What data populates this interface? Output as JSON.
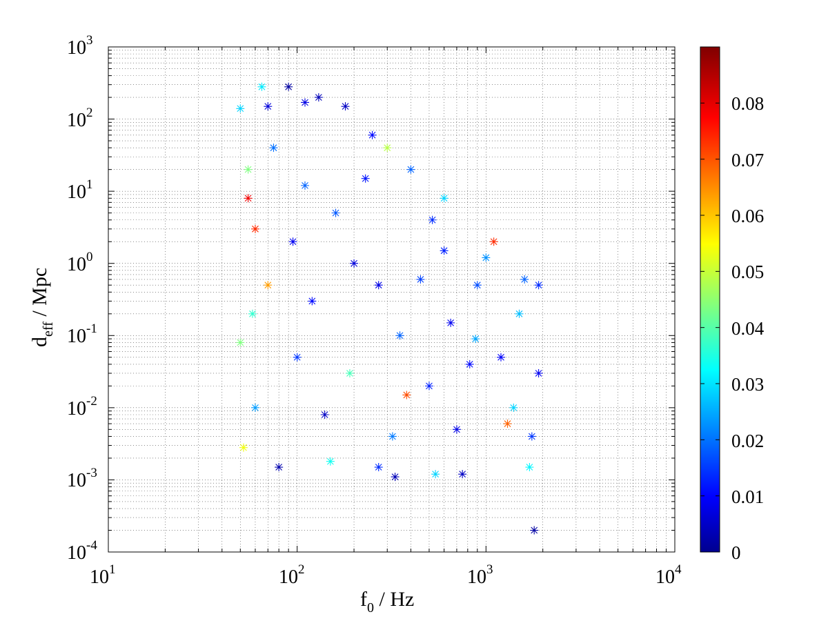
{
  "chart_data": {
    "type": "scatter",
    "marker": "asterisk",
    "colormap": "jet",
    "x_scale": "log",
    "y_scale": "log",
    "grid": true,
    "xlim": [
      10,
      10000
    ],
    "ylim": [
      0.0001,
      1000
    ],
    "xlabel": {
      "main": "f",
      "sub": "0",
      "rest": " / Hz"
    },
    "ylabel": {
      "main": "d",
      "sub": "eff",
      "rest": " / Mpc"
    },
    "x_ticks": [
      {
        "base": "10",
        "exp": "1"
      },
      {
        "base": "10",
        "exp": "2"
      },
      {
        "base": "10",
        "exp": "3"
      },
      {
        "base": "10",
        "exp": "4"
      }
    ],
    "y_ticks": [
      {
        "base": "10",
        "exp": "-4"
      },
      {
        "base": "10",
        "exp": "-3"
      },
      {
        "base": "10",
        "exp": "-2"
      },
      {
        "base": "10",
        "exp": "-1"
      },
      {
        "base": "10",
        "exp": "0"
      },
      {
        "base": "10",
        "exp": "1"
      },
      {
        "base": "10",
        "exp": "2"
      },
      {
        "base": "10",
        "exp": "3"
      }
    ],
    "colorbar": {
      "range": [
        0,
        0.09
      ],
      "ticks": [
        0,
        0.01,
        0.02,
        0.03,
        0.04,
        0.05,
        0.06,
        0.07,
        0.08
      ],
      "tick_labels": [
        "0",
        "0.01",
        "0.02",
        "0.03",
        "0.04",
        "0.05",
        "0.06",
        "0.07",
        "0.08"
      ]
    },
    "points": [
      [
        90,
        280,
        0.003
      ],
      [
        130,
        200,
        0.005
      ],
      [
        65,
        280,
        0.032
      ],
      [
        70,
        150,
        0.008
      ],
      [
        50,
        140,
        0.03
      ],
      [
        180,
        150,
        0.006
      ],
      [
        300,
        40,
        0.05
      ],
      [
        110,
        170,
        0.009
      ],
      [
        55,
        20,
        0.045
      ],
      [
        250,
        60,
        0.012
      ],
      [
        400,
        20,
        0.02
      ],
      [
        600,
        8,
        0.03
      ],
      [
        1100,
        2,
        0.075
      ],
      [
        1600,
        0.6,
        0.02
      ],
      [
        1900,
        0.5,
        0.015
      ],
      [
        1900,
        0.03,
        0.01
      ],
      [
        1800,
        0.0002,
        0.003
      ],
      [
        80,
        0.0015,
        0.004
      ],
      [
        330,
        0.0011,
        0.005
      ],
      [
        540,
        0.0012,
        0.03
      ],
      [
        1700,
        0.0015,
        0.033
      ],
      [
        270,
        0.0015,
        0.015
      ],
      [
        750,
        0.0012,
        0.006
      ],
      [
        150,
        0.0018,
        0.035
      ],
      [
        60,
        3,
        0.075
      ],
      [
        55,
        8,
        0.08
      ],
      [
        50,
        0.08,
        0.045
      ],
      [
        52,
        0.0028,
        0.055
      ],
      [
        1300,
        0.006,
        0.07
      ],
      [
        70,
        0.5,
        0.065
      ],
      [
        95,
        2,
        0.01
      ],
      [
        120,
        0.3,
        0.012
      ],
      [
        200,
        1,
        0.008
      ],
      [
        350,
        0.1,
        0.02
      ],
      [
        500,
        0.02,
        0.014
      ],
      [
        700,
        0.005,
        0.009
      ],
      [
        900,
        0.5,
        0.018
      ],
      [
        1200,
        0.05,
        0.011
      ],
      [
        60,
        0.01,
        0.025
      ],
      [
        100,
        0.05,
        0.016
      ],
      [
        160,
        5,
        0.019
      ],
      [
        230,
        15,
        0.013
      ],
      [
        320,
        0.004,
        0.022
      ],
      [
        450,
        0.6,
        0.017
      ],
      [
        650,
        0.15,
        0.01
      ],
      [
        1500,
        0.2,
        0.028
      ],
      [
        1000,
        1.2,
        0.024
      ],
      [
        75,
        40,
        0.021
      ],
      [
        140,
        0.008,
        0.006
      ],
      [
        190,
        0.03,
        0.04
      ],
      [
        520,
        4,
        0.015
      ],
      [
        820,
        0.04,
        0.012
      ],
      [
        1400,
        0.01,
        0.03
      ],
      [
        58,
        0.2,
        0.038
      ],
      [
        110,
        12,
        0.02
      ],
      [
        270,
        0.5,
        0.009
      ],
      [
        380,
        0.015,
        0.072
      ],
      [
        600,
        1.5,
        0.014
      ],
      [
        880,
        0.09,
        0.026
      ],
      [
        1750,
        0.004,
        0.016
      ]
    ]
  }
}
